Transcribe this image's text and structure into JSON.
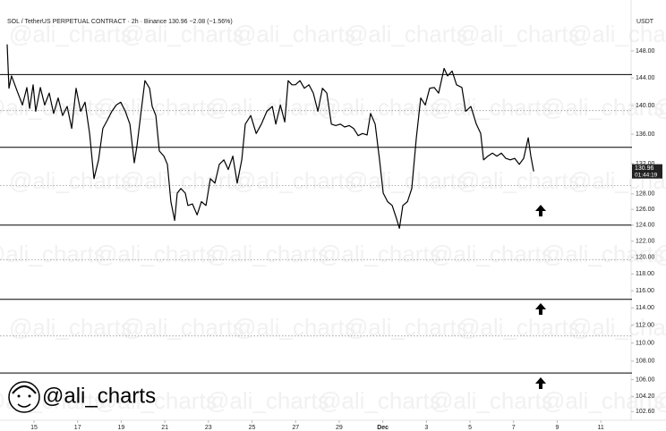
{
  "chart_data": {
    "type": "line",
    "title": "SOL / TetherUS PERPETUAL CONTRACT · 2h · Binance  130.96  −2.08 (−1.56%)",
    "y_axis_label": "USDT",
    "watermark": "@ali_charts",
    "brand": "@ali_charts",
    "last_price_label": "130.96",
    "countdown": "01:44:19",
    "log_scale": true,
    "color": "#000000",
    "x": [
      13.77,
      13.85,
      13.97,
      14.26,
      14.47,
      14.67,
      14.8,
      14.96,
      15.08,
      15.29,
      15.49,
      15.7,
      15.9,
      16.11,
      16.31,
      16.52,
      16.73,
      16.93,
      17.14,
      17.34,
      17.55,
      17.75,
      17.96,
      18.16,
      18.37,
      18.57,
      18.78,
      18.98,
      19.19,
      19.4,
      19.6,
      19.72,
      19.89,
      20.09,
      20.3,
      20.42,
      20.59,
      20.75,
      20.96,
      21.12,
      21.28,
      21.45,
      21.57,
      21.74,
      21.94,
      22.06,
      22.27,
      22.48,
      22.68,
      22.89,
      23.09,
      23.3,
      23.5,
      23.71,
      23.91,
      24.12,
      24.32,
      24.53,
      24.69,
      24.94,
      25.19,
      25.43,
      25.68,
      25.93,
      26.09,
      26.3,
      26.5,
      26.66,
      26.83,
      26.99,
      27.2,
      27.4,
      27.61,
      27.81,
      28.02,
      28.23,
      28.43,
      28.64,
      28.84,
      29.05,
      29.25,
      29.46,
      29.66,
      29.87,
      30.07,
      30.28,
      30.44,
      30.65,
      30.85,
      31.02,
      31.22,
      31.43,
      31.63,
      31.76,
      31.92,
      32.13,
      32.33,
      32.54,
      32.74,
      32.95,
      33.15,
      33.36,
      33.56,
      33.81,
      33.97,
      34.18,
      34.38,
      34.63,
      34.8,
      35.04,
      35.29,
      35.49,
      35.62,
      35.82,
      36.03,
      36.23,
      36.44,
      36.64,
      36.85,
      37.05,
      37.26,
      37.46,
      37.67,
      37.79,
      37.92
    ],
    "values": [
      149,
      142.5,
      144.3,
      141.8,
      140.1,
      142.6,
      139.6,
      143,
      139.2,
      142.6,
      140.1,
      141.8,
      138.9,
      141.1,
      138.6,
      139.9,
      136.8,
      142.5,
      139.2,
      140.5,
      136.1,
      130,
      132.5,
      136.8,
      138,
      139.2,
      140.1,
      140.5,
      139.2,
      137.4,
      132.1,
      134.3,
      138.6,
      143.6,
      142.5,
      139.9,
      138.6,
      133.7,
      133,
      131.9,
      127,
      124.6,
      128.1,
      128.7,
      128.1,
      126.5,
      126.7,
      125.3,
      127,
      126.5,
      130,
      129.4,
      131.9,
      132.5,
      131.2,
      133,
      129.4,
      132.5,
      137.4,
      138.6,
      136.1,
      137.4,
      139.2,
      139.9,
      137.4,
      140.1,
      137.7,
      143.6,
      143,
      143,
      143.6,
      142.5,
      143,
      141.8,
      139.2,
      142.5,
      141.8,
      137.4,
      137.2,
      137.4,
      137,
      137.2,
      136.8,
      135.8,
      136.1,
      135.9,
      138.9,
      137.4,
      132.5,
      128.1,
      127,
      126.5,
      124.8,
      123.6,
      126.5,
      127,
      128.7,
      135.5,
      141.1,
      140.1,
      142.5,
      142.6,
      141.8,
      145.4,
      144.3,
      145,
      143,
      142.6,
      139.2,
      139.9,
      137.4,
      136.1,
      132.5,
      133,
      133.4,
      133,
      133.4,
      132.7,
      132.5,
      132.7,
      131.9,
      132.7,
      135.5,
      133,
      130.96
    ],
    "levels_solid": [
      144.5,
      134.2,
      124,
      115,
      106.7
    ],
    "levels_dotted": [
      139.3,
      129.1,
      119.7,
      110.8
    ],
    "xlim": [
      13.44,
      42.43
    ],
    "xticks": [
      15,
      17,
      19,
      21,
      23,
      25,
      27,
      29,
      {
        "value": 31,
        "label": "Dec"
      },
      {
        "value": 33,
        "label": "3"
      },
      {
        "value": 35,
        "label": "5"
      },
      {
        "value": 37,
        "label": "7"
      },
      {
        "value": 39,
        "label": "9"
      },
      {
        "value": 41,
        "label": "11"
      }
    ],
    "ylim": [
      101.7,
      153.06
    ],
    "yticks": [
      {
        "value": 148,
        "label": "148.00"
      },
      {
        "value": 144,
        "label": "144.00"
      },
      {
        "value": 140,
        "label": "140.00"
      },
      {
        "value": 136,
        "label": "136.00"
      },
      {
        "value": 132,
        "label": "132.00"
      },
      {
        "value": 128,
        "label": "128.00"
      },
      {
        "value": 126,
        "label": "126.00"
      },
      {
        "value": 124,
        "label": "124.00"
      },
      {
        "value": 122,
        "label": "122.00"
      },
      {
        "value": 120,
        "label": "120.00"
      },
      {
        "value": 118,
        "label": "118.00"
      },
      {
        "value": 116,
        "label": "116.00"
      },
      {
        "value": 114,
        "label": "114.00"
      },
      {
        "value": 112,
        "label": "112.00"
      },
      {
        "value": 110,
        "label": "110.00"
      },
      {
        "value": 108,
        "label": "108.00"
      },
      {
        "value": 106,
        "label": "106.00"
      },
      {
        "value": 104.2,
        "label": "104.20"
      },
      {
        "value": 102.6,
        "label": "102.60"
      }
    ]
  }
}
